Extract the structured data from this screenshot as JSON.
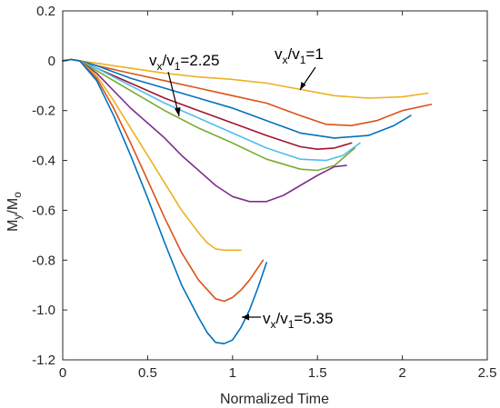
{
  "chart_data": {
    "type": "line",
    "xlabel": "Normalized Time",
    "ylabel": {
      "main": "M",
      "sub1": "y",
      "mid": "/M",
      "sub2": "o"
    },
    "xlim": [
      0,
      2.5
    ],
    "ylim": [
      -1.2,
      0.2
    ],
    "xticks": [
      "0",
      "0.5",
      "1",
      "1.5",
      "2",
      "2.5"
    ],
    "yticks": [
      "0.2",
      "0",
      "-0.2",
      "-0.4",
      "-0.6",
      "-0.8",
      "-1.0",
      "-1.2"
    ],
    "grid": false,
    "series": [
      {
        "color": "#EDB120",
        "x": [
          0,
          0.05,
          0.1,
          0.2,
          0.4,
          0.6,
          0.8,
          1.0,
          1.2,
          1.4,
          1.6,
          1.8,
          2.0,
          2.15
        ],
        "y": [
          0,
          0.005,
          0,
          -0.01,
          -0.03,
          -0.05,
          -0.065,
          -0.075,
          -0.09,
          -0.115,
          -0.14,
          -0.15,
          -0.145,
          -0.13
        ]
      },
      {
        "color": "#D95319",
        "x": [
          0,
          0.05,
          0.1,
          0.2,
          0.4,
          0.6,
          0.8,
          1.0,
          1.2,
          1.4,
          1.55,
          1.7,
          1.85,
          2.0,
          2.17
        ],
        "y": [
          0,
          0.005,
          0,
          -0.02,
          -0.05,
          -0.08,
          -0.11,
          -0.14,
          -0.17,
          -0.22,
          -0.255,
          -0.26,
          -0.24,
          -0.2,
          -0.175
        ]
      },
      {
        "color": "#0072BD",
        "x": [
          0,
          0.05,
          0.1,
          0.2,
          0.4,
          0.6,
          0.8,
          1.0,
          1.2,
          1.4,
          1.6,
          1.8,
          1.95,
          2.05
        ],
        "y": [
          0,
          0.005,
          0,
          -0.02,
          -0.07,
          -0.11,
          -0.15,
          -0.19,
          -0.24,
          -0.29,
          -0.31,
          -0.3,
          -0.26,
          -0.22
        ]
      },
      {
        "color": "#A2142F",
        "x": [
          0,
          0.05,
          0.1,
          0.2,
          0.4,
          0.6,
          0.8,
          1.0,
          1.2,
          1.4,
          1.5,
          1.6,
          1.7
        ],
        "y": [
          0,
          0.005,
          0,
          -0.03,
          -0.09,
          -0.15,
          -0.2,
          -0.25,
          -0.3,
          -0.345,
          -0.355,
          -0.35,
          -0.33
        ]
      },
      {
        "color": "#4DBEEE",
        "x": [
          0,
          0.05,
          0.1,
          0.2,
          0.4,
          0.6,
          0.8,
          1.0,
          1.2,
          1.4,
          1.55,
          1.65,
          1.75
        ],
        "y": [
          0,
          0.005,
          0,
          -0.03,
          -0.1,
          -0.17,
          -0.23,
          -0.29,
          -0.35,
          -0.395,
          -0.4,
          -0.38,
          -0.33
        ]
      },
      {
        "color": "#77AC30",
        "x": [
          0,
          0.05,
          0.1,
          0.2,
          0.4,
          0.6,
          0.8,
          1.0,
          1.2,
          1.4,
          1.5,
          1.6,
          1.72
        ],
        "y": [
          0,
          0.005,
          0,
          -0.04,
          -0.12,
          -0.2,
          -0.27,
          -0.33,
          -0.395,
          -0.435,
          -0.44,
          -0.42,
          -0.35
        ]
      },
      {
        "color": "#7E2F8E",
        "x": [
          0,
          0.05,
          0.1,
          0.2,
          0.3,
          0.4,
          0.5,
          0.6,
          0.7,
          0.8,
          0.9,
          1.0,
          1.1,
          1.2,
          1.3,
          1.4,
          1.5,
          1.6,
          1.67
        ],
        "y": [
          0,
          0.005,
          0,
          -0.05,
          -0.12,
          -0.19,
          -0.25,
          -0.31,
          -0.38,
          -0.44,
          -0.5,
          -0.545,
          -0.565,
          -0.565,
          -0.54,
          -0.5,
          -0.46,
          -0.425,
          -0.42
        ]
      },
      {
        "color": "#EDB120",
        "x": [
          0,
          0.05,
          0.1,
          0.2,
          0.3,
          0.4,
          0.5,
          0.6,
          0.7,
          0.8,
          0.85,
          0.9,
          0.95,
          1.0,
          1.05
        ],
        "y": [
          0,
          0.005,
          0,
          -0.06,
          -0.16,
          -0.27,
          -0.38,
          -0.49,
          -0.6,
          -0.69,
          -0.73,
          -0.755,
          -0.76,
          -0.76,
          -0.76
        ]
      },
      {
        "color": "#D95319",
        "x": [
          0,
          0.05,
          0.1,
          0.2,
          0.3,
          0.4,
          0.5,
          0.6,
          0.7,
          0.8,
          0.9,
          0.95,
          1.0,
          1.05,
          1.1,
          1.18
        ],
        "y": [
          0,
          0.005,
          0,
          -0.07,
          -0.19,
          -0.33,
          -0.48,
          -0.63,
          -0.77,
          -0.88,
          -0.955,
          -0.965,
          -0.95,
          -0.92,
          -0.88,
          -0.8
        ]
      },
      {
        "color": "#0072BD",
        "x": [
          0,
          0.05,
          0.1,
          0.2,
          0.3,
          0.4,
          0.5,
          0.6,
          0.7,
          0.8,
          0.85,
          0.9,
          0.95,
          1.0,
          1.05,
          1.1,
          1.15,
          1.2
        ],
        "y": [
          0,
          0.005,
          0,
          -0.08,
          -0.22,
          -0.38,
          -0.55,
          -0.73,
          -0.9,
          -1.03,
          -1.09,
          -1.13,
          -1.135,
          -1.12,
          -1.07,
          -1.0,
          -0.91,
          -0.81
        ]
      }
    ],
    "annotations": [
      {
        "label": "vx/v1=1",
        "base1": "v",
        "sub1": "x",
        "mid": "/v",
        "sub2": "1",
        "tail": "=1"
      },
      {
        "label": "vx/v1=2.25",
        "base1": "v",
        "sub1": "x",
        "mid": "/v",
        "sub2": "1",
        "tail": "=2.25"
      },
      {
        "label": "vx/v1=5.35",
        "base1": "v",
        "sub1": "x",
        "mid": "/v",
        "sub2": "1",
        "tail": "=5.35"
      }
    ]
  }
}
